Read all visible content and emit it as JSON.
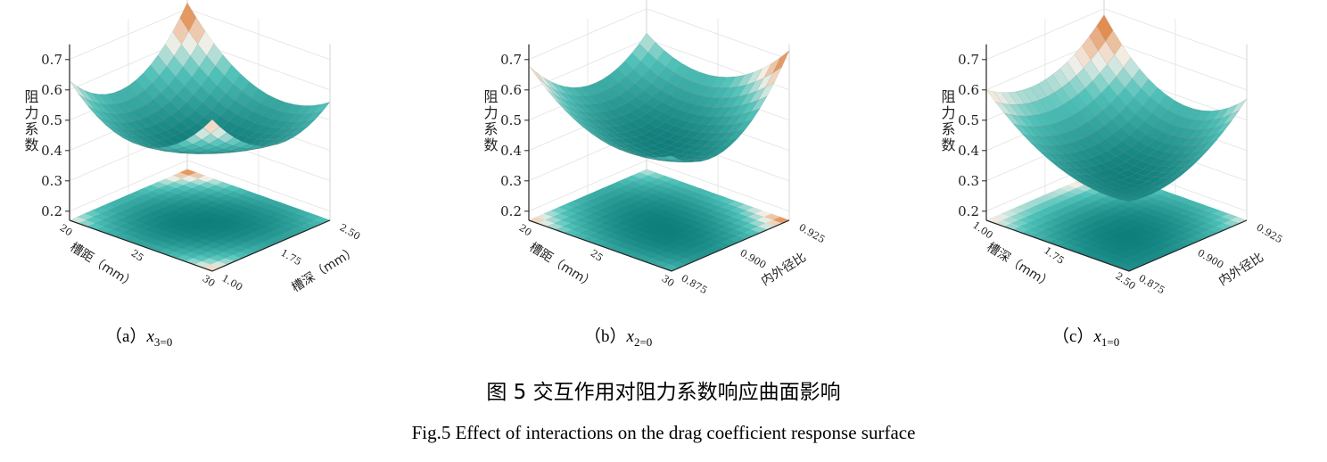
{
  "chart_data": [
    {
      "type": "surface3d",
      "caption": {
        "label": "（a）",
        "var": "x",
        "sub": "3=0"
      },
      "zlabel": "阻力系数",
      "xlabel": "槽距（mm）",
      "ylabel": "槽深（mm）",
      "x_ticks": [
        "20",
        "25",
        "30"
      ],
      "y_ticks": [
        "1.00",
        "1.75",
        "2.50"
      ],
      "z_ticks": [
        "0.2",
        "0.3",
        "0.4",
        "0.5",
        "0.6",
        "0.7"
      ],
      "x": [
        20,
        25,
        30
      ],
      "y": [
        1.0,
        1.75,
        2.5
      ],
      "z_grid": [
        [
          0.63,
          0.53,
          0.72
        ],
        [
          0.5,
          0.43,
          0.52
        ],
        [
          0.67,
          0.5,
          0.56
        ]
      ],
      "zlim": [
        0.17,
        0.75
      ],
      "floor_contour": true
    },
    {
      "type": "surface3d",
      "caption": {
        "label": "（b）",
        "var": "x",
        "sub": "2=0"
      },
      "zlabel": "阻力系数",
      "xlabel": "槽距（mm）",
      "ylabel": "内外径比",
      "x_ticks": [
        "20",
        "25",
        "30"
      ],
      "y_ticks": [
        "0.875",
        "0.900",
        "0.925"
      ],
      "z_ticks": [
        "0.2",
        "0.3",
        "0.4",
        "0.5",
        "0.6",
        "0.7"
      ],
      "x": [
        20,
        25,
        30
      ],
      "y": [
        0.875,
        0.9,
        0.925
      ],
      "z_grid": [
        [
          0.68,
          0.53,
          0.62
        ],
        [
          0.52,
          0.45,
          0.56
        ],
        [
          0.55,
          0.5,
          0.73
        ]
      ],
      "zlim": [
        0.17,
        0.75
      ],
      "floor_contour": true
    },
    {
      "type": "surface3d",
      "caption": {
        "label": "（c）",
        "var": "x",
        "sub": "1=0"
      },
      "zlabel": "阻力系数",
      "xlabel": "槽深（mm）",
      "ylabel": "内外径比",
      "x_ticks": [
        "1.00",
        "1.75",
        "2.50"
      ],
      "y_ticks": [
        "0.875",
        "0.900",
        "0.925"
      ],
      "z_ticks": [
        "0.2",
        "0.3",
        "0.4",
        "0.5",
        "0.6",
        "0.7"
      ],
      "x": [
        1.0,
        1.75,
        2.5
      ],
      "y": [
        0.875,
        0.9,
        0.925
      ],
      "z_grid": [
        [
          0.6,
          0.55,
          0.68
        ],
        [
          0.43,
          0.38,
          0.48
        ],
        [
          0.4,
          0.42,
          0.57
        ]
      ],
      "zlim": [
        0.17,
        0.75
      ],
      "floor_contour": true
    }
  ],
  "colors": {
    "low": "#0f7f7c",
    "mid_low": "#52c3ba",
    "mid": "#f5f1ea",
    "high": "#d9620f"
  },
  "figure": {
    "title_cn": "图 5 交互作用对阻力系数响应曲面影响",
    "title_en": "Fig.5 Effect of interactions on the drag coefficient response surface"
  }
}
